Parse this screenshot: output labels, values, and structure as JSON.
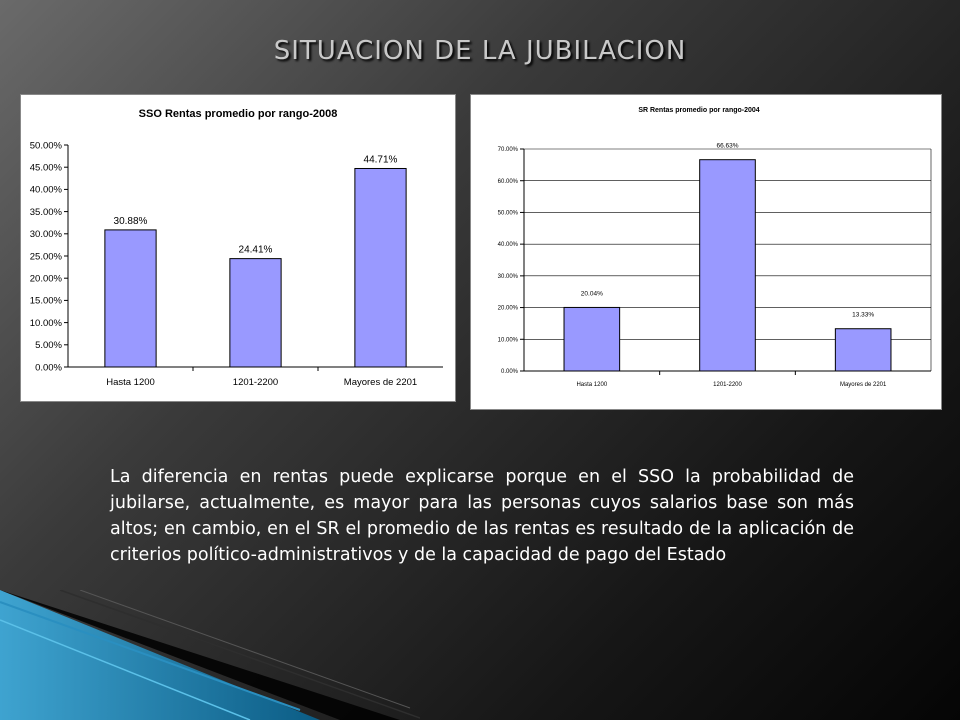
{
  "slide": {
    "title": "SITUACION DE LA JUBILACION",
    "body_text": "La diferencia en rentas puede explicarse porque en el SSO la probabilidad de jubilarse, actualmente, es mayor para las personas cuyos salarios base son más altos; en cambio,  en el SR el promedio de las rentas es resultado de la aplicación de criterios político-administrativos y de la capacidad de pago del Estado"
  },
  "colors": {
    "bar_fill": "#9999ff",
    "bar_stroke": "#000000"
  },
  "chart_data": [
    {
      "type": "bar",
      "title": "SSO Rentas promedio por rango-2008",
      "categories": [
        "Hasta 1200",
        "1201-2200",
        "Mayores de 2201"
      ],
      "values": [
        30.88,
        24.41,
        44.71
      ],
      "data_labels": [
        "30.88%",
        "24.41%",
        "44.71%"
      ],
      "ylim": [
        0,
        50
      ],
      "ytick_values": [
        0,
        5,
        10,
        15,
        20,
        25,
        30,
        35,
        40,
        45,
        50
      ],
      "ytick_labels": [
        "0.00%",
        "5.00%",
        "10.00%",
        "15.00%",
        "20.00%",
        "25.00%",
        "30.00%",
        "35.00%",
        "40.00%",
        "45.00%",
        "50.00%"
      ],
      "xlabel": "",
      "ylabel": "",
      "grid": false,
      "legend": "none"
    },
    {
      "type": "bar",
      "title": "SR Rentas promedio por rango-2004",
      "categories": [
        "Hasta 1200",
        "1201-2200",
        "Mayores de 2201"
      ],
      "values": [
        20.04,
        66.63,
        13.33
      ],
      "data_labels": [
        "20.04%",
        "66.63%",
        "13.33%"
      ],
      "ylim": [
        0,
        70
      ],
      "ytick_values": [
        0,
        10,
        20,
        30,
        40,
        50,
        60,
        70
      ],
      "ytick_labels": [
        "0.00%",
        "10.00%",
        "20.00%",
        "30.00%",
        "40.00%",
        "50.00%",
        "60.00%",
        "70.00%"
      ],
      "xlabel": "",
      "ylabel": "",
      "grid": true,
      "legend": "none"
    }
  ]
}
